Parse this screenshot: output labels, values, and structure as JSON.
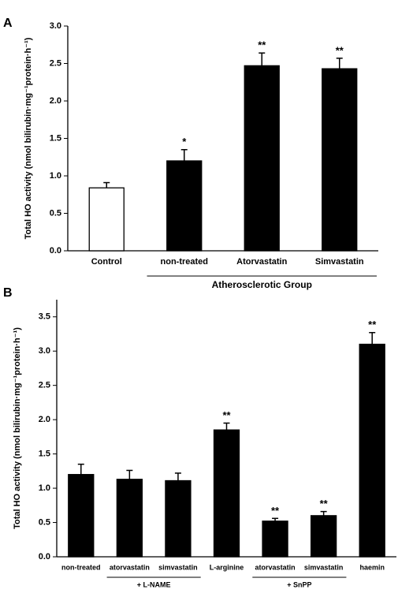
{
  "chart_data": [
    {
      "type": "bar",
      "panel": "A",
      "y_label": "Total HO activity (nmol bilirubin·mg⁻¹protein·h⁻¹)",
      "categories": [
        "Control",
        "non-treated",
        "Atorvastatin",
        "Simvastatin"
      ],
      "values": [
        0.84,
        1.2,
        2.47,
        2.43
      ],
      "errors": [
        0.07,
        0.15,
        0.17,
        0.14
      ],
      "colors": [
        "#ffffff",
        "#000000",
        "#000000",
        "#000000"
      ],
      "stars": [
        null,
        "*",
        "**",
        "**"
      ],
      "groups": [
        "Atherosclerotic Group"
      ],
      "ylim": [
        0,
        3
      ],
      "yticks": [
        {
          "value": 0,
          "label": "0.0"
        },
        0.5,
        {
          "value": 1,
          "label": "1.0"
        },
        1.5,
        {
          "value": 2,
          "label": "2.0"
        },
        2.5,
        {
          "value": 3,
          "label": "3.0"
        }
      ]
    },
    {
      "type": "bar",
      "panel": "B",
      "y_label": "Total HO activity (nmol bilirubin·mg⁻¹protein·h⁻¹)",
      "categories": [
        "non-treated",
        "atorvastatin",
        "simvastatin",
        "L-arginine",
        "atorvastatin",
        "simvastatin",
        "haemin"
      ],
      "values": [
        1.2,
        1.13,
        1.11,
        1.85,
        0.52,
        0.6,
        3.1
      ],
      "errors": [
        0.15,
        0.13,
        0.11,
        0.1,
        0.04,
        0.06,
        0.17
      ],
      "colors": [
        "#000000",
        "#000000",
        "#000000",
        "#000000",
        "#000000",
        "#000000",
        "#000000"
      ],
      "stars": [
        null,
        null,
        null,
        "**",
        "**",
        "**",
        "**"
      ],
      "groups": [
        "+ L-NAME",
        "+ SnPP"
      ],
      "ylim": [
        0,
        3.75
      ],
      "yticks": [
        {
          "value": 0,
          "label": "0.0"
        },
        0.5,
        {
          "value": 1,
          "label": "1.0"
        },
        1.5,
        {
          "value": 2,
          "label": "2.0"
        },
        2.5,
        {
          "value": 3,
          "label": "3.0"
        },
        3.5
      ]
    }
  ]
}
